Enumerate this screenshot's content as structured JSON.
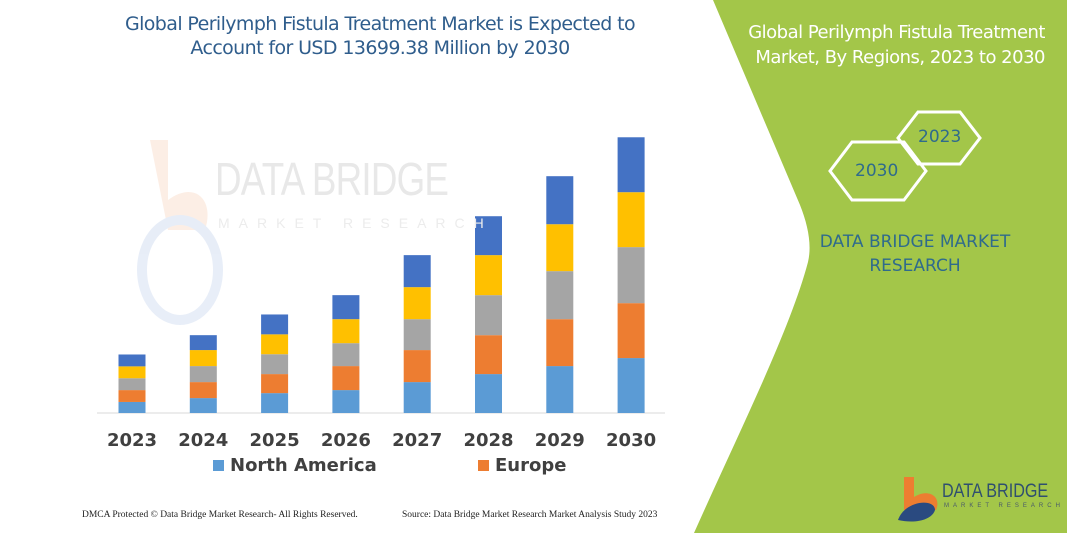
{
  "header": {
    "title": "Global Perilymph Fistula Treatment Market is Expected to Account for USD 13699.38 Million by 2030"
  },
  "side_panel": {
    "title": "Global Perilymph Fistula Treatment Market, By Regions, 2023 to 2030",
    "hex_start": "2023",
    "hex_end": "2030",
    "brand": "DATA BRIDGE MARKET RESEARCH",
    "logo": "DATA BRIDGE MARKET RESEARCH",
    "panel_color": "#a3c649"
  },
  "watermark": "DATA BRIDGE MARKET RESEARCH",
  "footer": {
    "copyright": "DMCA Protected © Data Bridge Market Research- All Rights Reserved.",
    "source": "Source: Data Bridge Market Research Market Analysis Study 2023"
  },
  "chart_data": {
    "type": "bar",
    "stacked": true,
    "title": "",
    "xlabel": "",
    "ylabel": "",
    "y_axis_shown": false,
    "grid": false,
    "legend_position": "bottom",
    "ylim": [
      0,
      100
    ],
    "categories": [
      "2023",
      "2024",
      "2025",
      "2026",
      "2027",
      "2028",
      "2029",
      "2030"
    ],
    "series": [
      {
        "name": "North America",
        "color": "#5b9bd5",
        "values": [
          4.0,
          5.4,
          7.2,
          8.3,
          11.2,
          14.1,
          17.0,
          19.9
        ]
      },
      {
        "name": "Europe",
        "color": "#ed7d31",
        "values": [
          4.3,
          5.8,
          6.9,
          8.7,
          11.6,
          14.1,
          17.0,
          19.9
        ]
      },
      {
        "color": "#a5a5a5",
        "values": [
          4.3,
          5.8,
          7.2,
          8.3,
          11.2,
          14.5,
          17.4,
          20.3
        ]
      },
      {
        "color": "#ffc000",
        "values": [
          4.3,
          5.8,
          7.2,
          8.7,
          11.6,
          14.5,
          17.0,
          19.9
        ]
      },
      {
        "color": "#4472c4",
        "values": [
          4.3,
          5.4,
          7.2,
          8.7,
          11.6,
          14.1,
          17.4,
          19.9
        ]
      }
    ]
  }
}
